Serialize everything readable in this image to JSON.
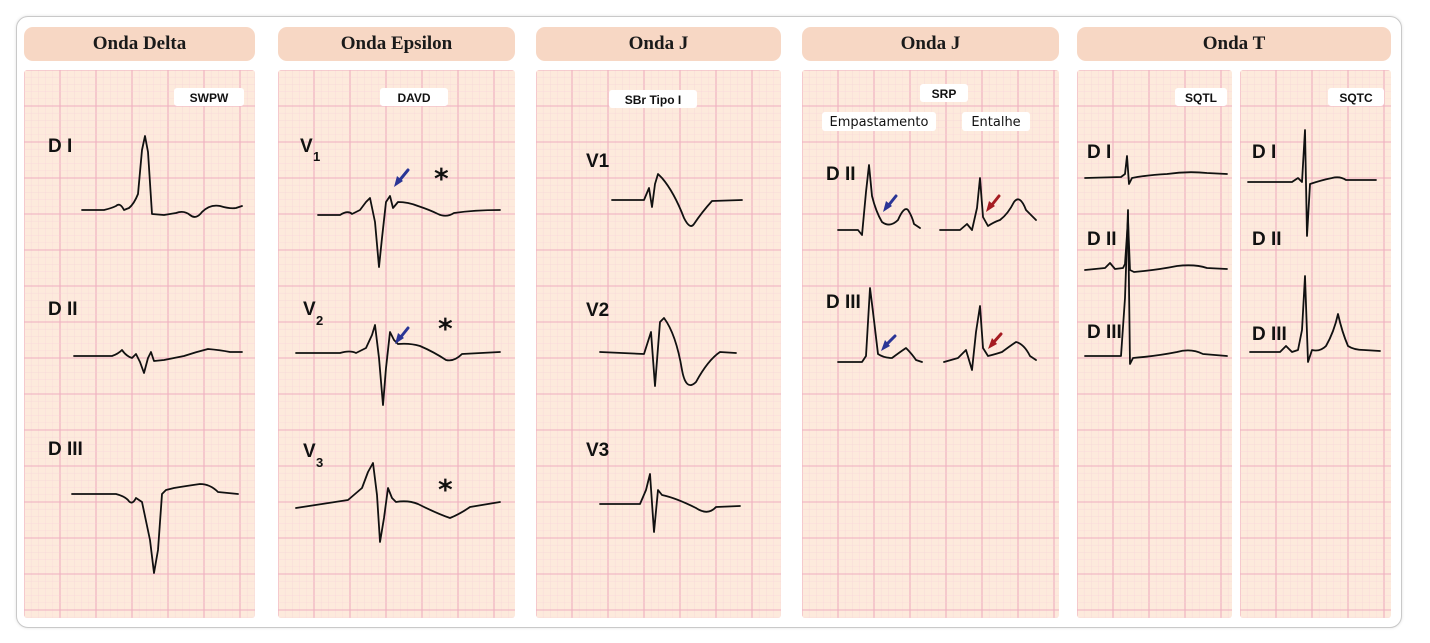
{
  "colors": {
    "paper": "#fdeadc",
    "grid_major": "#eeaec0",
    "grid_minor": "#f6cfd8",
    "header": "#f7d7c4",
    "arrow_blue": "#2a3596",
    "arrow_red": "#a51c22"
  },
  "panels": [
    {
      "title": "Onda Delta",
      "badge": "SWPW",
      "leads": [
        "D I",
        "D II",
        "D III"
      ]
    },
    {
      "title": "Onda Epsilon",
      "badge": "DAVD",
      "leads": [
        {
          "main": "V",
          "sub": "1"
        },
        {
          "main": "V",
          "sub": "2"
        },
        {
          "main": "V",
          "sub": "3"
        }
      ],
      "markers": [
        "*",
        "*",
        "*"
      ]
    },
    {
      "title": "Onda J",
      "badge": "SBr Tipo I",
      "leads": [
        "V1",
        "V2",
        "V3"
      ]
    },
    {
      "title": "Onda J",
      "badge": "SRP",
      "sublabels": [
        "Empastamento",
        "Entalhe"
      ],
      "leads": [
        "D II",
        "D III"
      ]
    },
    {
      "title": "Onda T",
      "badges": [
        "SQTL",
        "SQTC"
      ],
      "leads": [
        "D I",
        "D II",
        "D III"
      ]
    }
  ]
}
